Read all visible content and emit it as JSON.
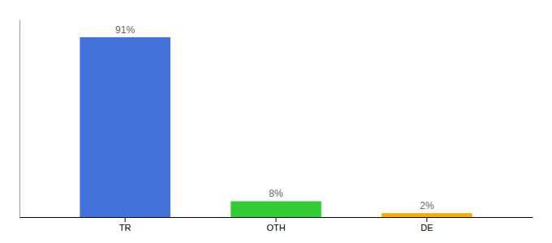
{
  "chart_data": {
    "type": "bar",
    "categories": [
      "TR",
      "OTH",
      "DE"
    ],
    "values": [
      91,
      8,
      2
    ],
    "colors": [
      "#4472db",
      "#33cc33",
      "#ffaa00"
    ],
    "data_labels": true,
    "value_labels": [
      "91%",
      "8%",
      "2%"
    ],
    "ylim": [
      0,
      100
    ],
    "tick_labels": "x"
  }
}
